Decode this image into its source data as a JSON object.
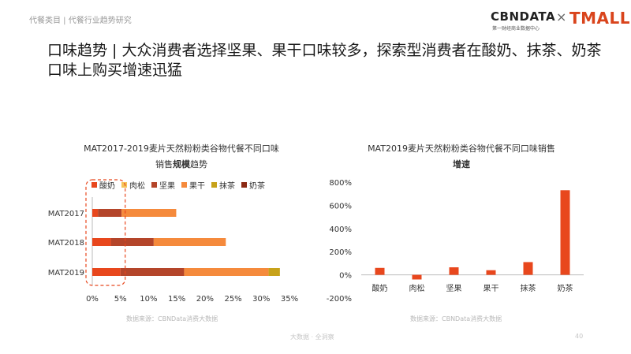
{
  "breadcrumb": "代餐类目 | 代餐行业趋势研究",
  "logo": {
    "brand1": "CBNDATA",
    "brand1_sub": "第一财经商业数据中心",
    "separator": "×",
    "brand2": "TMALL"
  },
  "headline": "口味趋势 | 大众消费者选择坚果、果干口味较多，探索型消费者在酸奶、抹茶、奶茶口味上购买增速迅猛",
  "colors": {
    "suanNai": "#e8471d",
    "rouSong": "#f5c35a",
    "jianGuo": "#b4452a",
    "guoGan": "#f58a3c",
    "moCha": "#c7a21a",
    "naiCha": "#8c2a14",
    "bar": "#e8471d",
    "highlight": "#e8471d",
    "axis": "#bbbbbb"
  },
  "chart_data": [
    {
      "type": "bar",
      "orientation": "horizontal",
      "stacked": true,
      "title_line1": "MAT2017-2019麦片天然粉粉类谷物代餐不同口味",
      "title_line2_prefix": "销售",
      "title_line2_bold": "规模",
      "title_line2_suffix": "趋势",
      "categories": [
        "MAT2017",
        "MAT2018",
        "MAT2019"
      ],
      "series": [
        {
          "name": "酸奶",
          "values": [
            1.0,
            3.3,
            5.0
          ]
        },
        {
          "name": "肉松",
          "values": [
            0.0,
            0.0,
            0.0
          ]
        },
        {
          "name": "坚果",
          "values": [
            4.2,
            7.6,
            11.3
          ]
        },
        {
          "name": "果干",
          "values": [
            9.7,
            12.8,
            15.0
          ]
        },
        {
          "name": "抹茶",
          "values": [
            0.0,
            0.0,
            2.0
          ]
        },
        {
          "name": "奶茶",
          "values": [
            0.0,
            0.0,
            0.0
          ]
        }
      ],
      "xlim": [
        0,
        35
      ],
      "x_ticks": [
        "0%",
        "5%",
        "10%",
        "15%",
        "20%",
        "25%",
        "30%",
        "35%"
      ],
      "legend_placement": "top",
      "highlight": "dashed box around the 0–5% range"
    },
    {
      "type": "bar",
      "orientation": "vertical",
      "title_line1": "MAT2019麦片天然粉粉类谷物代餐不同口味销售",
      "title_line2_bold": "增速",
      "categories": [
        "酸奶",
        "肉松",
        "坚果",
        "果干",
        "抹茶",
        "奶茶"
      ],
      "values": [
        60,
        -40,
        65,
        40,
        110,
        730
      ],
      "ylim": [
        -200,
        800
      ],
      "y_ticks": [
        "800%",
        "600%",
        "400%",
        "200%",
        "0%",
        "-200%"
      ]
    }
  ],
  "sources": {
    "left": "数据来源：CBNData消费大数据",
    "right": "数据来源：CBNData消费大数据"
  },
  "footer": "大数据 · 全洞察",
  "page_number": "40"
}
